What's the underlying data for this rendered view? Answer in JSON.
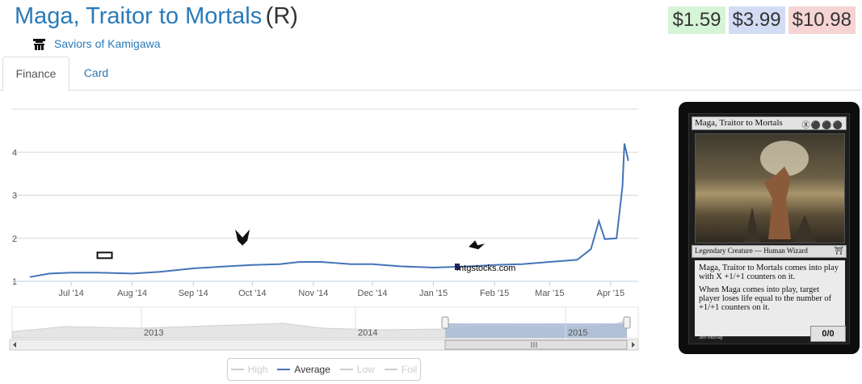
{
  "header": {
    "card_name": "Maga, Traitor to Mortals",
    "rarity": "(R)",
    "set_name": "Saviors of Kamigawa",
    "set_icon": "saviors-of-kamigawa-set-icon"
  },
  "prices": {
    "low": "$1.59",
    "average": "$3.99",
    "high": "$10.98",
    "colors": {
      "low": "#d6f5d6",
      "average": "#d3dcf5",
      "high": "#f6d4d4"
    }
  },
  "tabs": [
    {
      "label": "Finance",
      "active": true
    },
    {
      "label": "Card",
      "active": false
    }
  ],
  "watermark": "mtgstocks.com",
  "chart_data": {
    "type": "line",
    "x_axis": {
      "type": "date",
      "min": "2014-06-01",
      "max": "2015-04-15",
      "tick_labels": [
        "Jul '14",
        "Aug '14",
        "Sep '14",
        "Oct '14",
        "Nov '14",
        "Dec '14",
        "Jan '15",
        "Feb '15",
        "Mar '15",
        "Apr '15"
      ]
    },
    "y_axis": {
      "min": 1,
      "max": 5,
      "tick_labels": [
        "1",
        "2",
        "3",
        "4"
      ]
    },
    "grid": true,
    "series": [
      {
        "name": "Average",
        "color": "#4474b8",
        "points": [
          [
            "2014-06-10",
            1.1
          ],
          [
            "2014-06-20",
            1.18
          ],
          [
            "2014-07-01",
            1.2
          ],
          [
            "2014-07-15",
            1.2
          ],
          [
            "2014-08-01",
            1.18
          ],
          [
            "2014-08-15",
            1.22
          ],
          [
            "2014-09-01",
            1.3
          ],
          [
            "2014-09-15",
            1.34
          ],
          [
            "2014-10-01",
            1.38
          ],
          [
            "2014-10-15",
            1.4
          ],
          [
            "2014-10-25",
            1.45
          ],
          [
            "2014-11-05",
            1.45
          ],
          [
            "2014-11-20",
            1.4
          ],
          [
            "2014-12-01",
            1.4
          ],
          [
            "2014-12-15",
            1.35
          ],
          [
            "2015-01-01",
            1.32
          ],
          [
            "2015-01-20",
            1.35
          ],
          [
            "2015-02-01",
            1.38
          ],
          [
            "2015-02-15",
            1.4
          ],
          [
            "2015-03-01",
            1.45
          ],
          [
            "2015-03-15",
            1.5
          ],
          [
            "2015-03-22",
            1.75
          ],
          [
            "2015-03-26",
            2.4
          ],
          [
            "2015-03-29",
            1.98
          ],
          [
            "2015-04-04",
            2.0
          ],
          [
            "2015-04-07",
            3.2
          ],
          [
            "2015-04-08",
            4.2
          ],
          [
            "2015-04-10",
            3.8
          ]
        ]
      },
      {
        "name": "High",
        "color": "#cccccc",
        "visible": false
      },
      {
        "name": "Low",
        "color": "#cccccc",
        "visible": false
      },
      {
        "name": "Foil",
        "color": "#cccccc",
        "visible": false
      }
    ],
    "set_markers": [
      {
        "date": "2014-07-18",
        "icon": "m15-set-icon"
      },
      {
        "date": "2014-09-26",
        "icon": "khans-of-tarkir-set-icon"
      },
      {
        "date": "2015-01-23",
        "icon": "fate-reforged-set-icon"
      }
    ],
    "navigator": {
      "labels": [
        "2013",
        "2014",
        "2015"
      ],
      "selected_range": [
        "2014-06-01",
        "2015-04-15"
      ]
    }
  },
  "card_image": {
    "name": "Maga, Traitor to Mortals",
    "mana_cost": "Ⓧ⚫⚫⚫",
    "type_line": "Legendary Creature — Human Wizard",
    "rules_text": [
      "Maga, Traitor to Mortals comes into play with X +1/+1 counters on it.",
      "When Maga comes into play, target player loses life equal to the number of +1/+1 counters on it."
    ],
    "power_toughness": "0/0",
    "artist": "Jim Murray"
  }
}
